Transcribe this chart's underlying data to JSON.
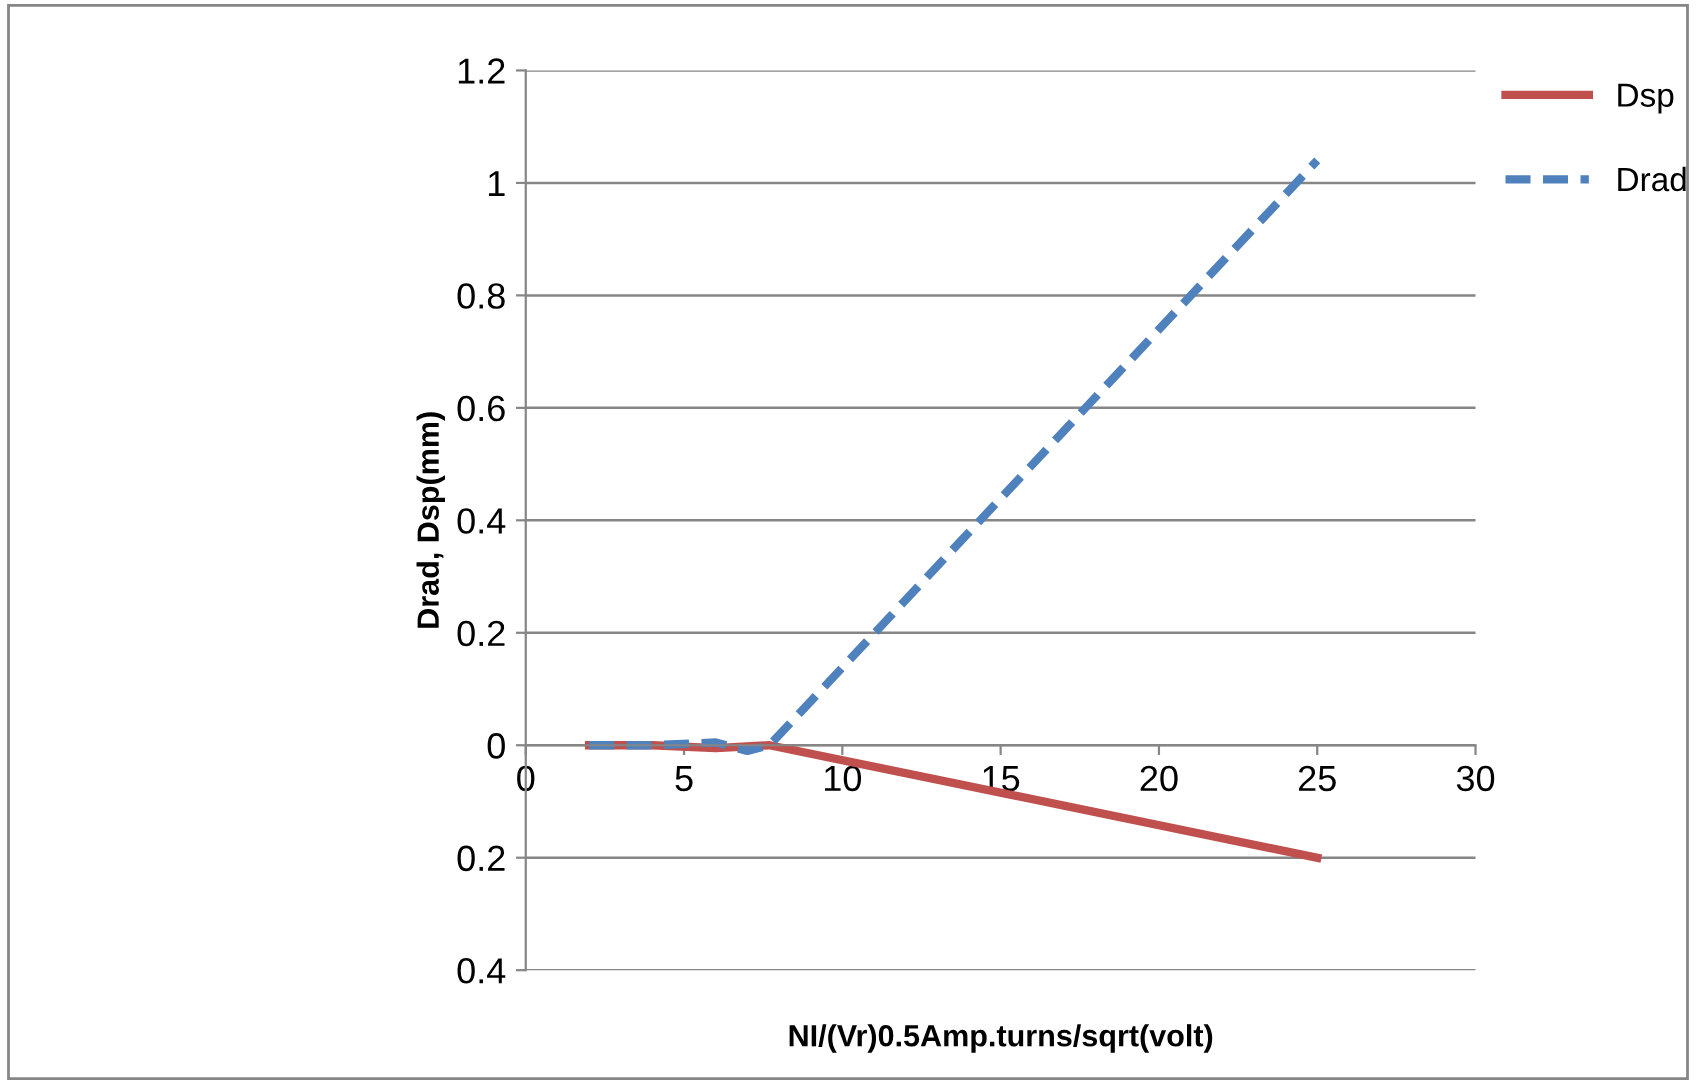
{
  "chart_data": {
    "type": "line",
    "xlabel": "NI/(Vr)0.5Amp.turns/sqrt(volt)",
    "ylabel": "Drad, Dsp(mm)",
    "series": [
      {
        "name": "Dsp",
        "color": "#c0504d",
        "line_style": "solid",
        "x": [
          2,
          4,
          6,
          7.7,
          25
        ],
        "values": [
          0,
          0,
          -0.005,
          0,
          -0.2
        ]
      },
      {
        "name": "Drad",
        "color": "#4f81bd",
        "line_style": "dashed",
        "x": [
          2,
          4,
          6,
          7,
          7.7,
          25
        ],
        "values": [
          0,
          0,
          0.005,
          -0.01,
          0,
          1.04
        ]
      }
    ],
    "xlim": [
      0,
      30
    ],
    "xticks": [
      0,
      5,
      10,
      15,
      20,
      25,
      30
    ],
    "ylim": [
      -0.4,
      1.2
    ],
    "yticks": [
      {
        "value": -0.4,
        "label": "0.4"
      },
      {
        "value": -0.2,
        "label": "0.2"
      },
      0,
      0.2,
      0.4,
      0.6,
      0.8,
      1,
      1.2
    ],
    "grid": "y",
    "legend": "right",
    "marker": "none"
  }
}
